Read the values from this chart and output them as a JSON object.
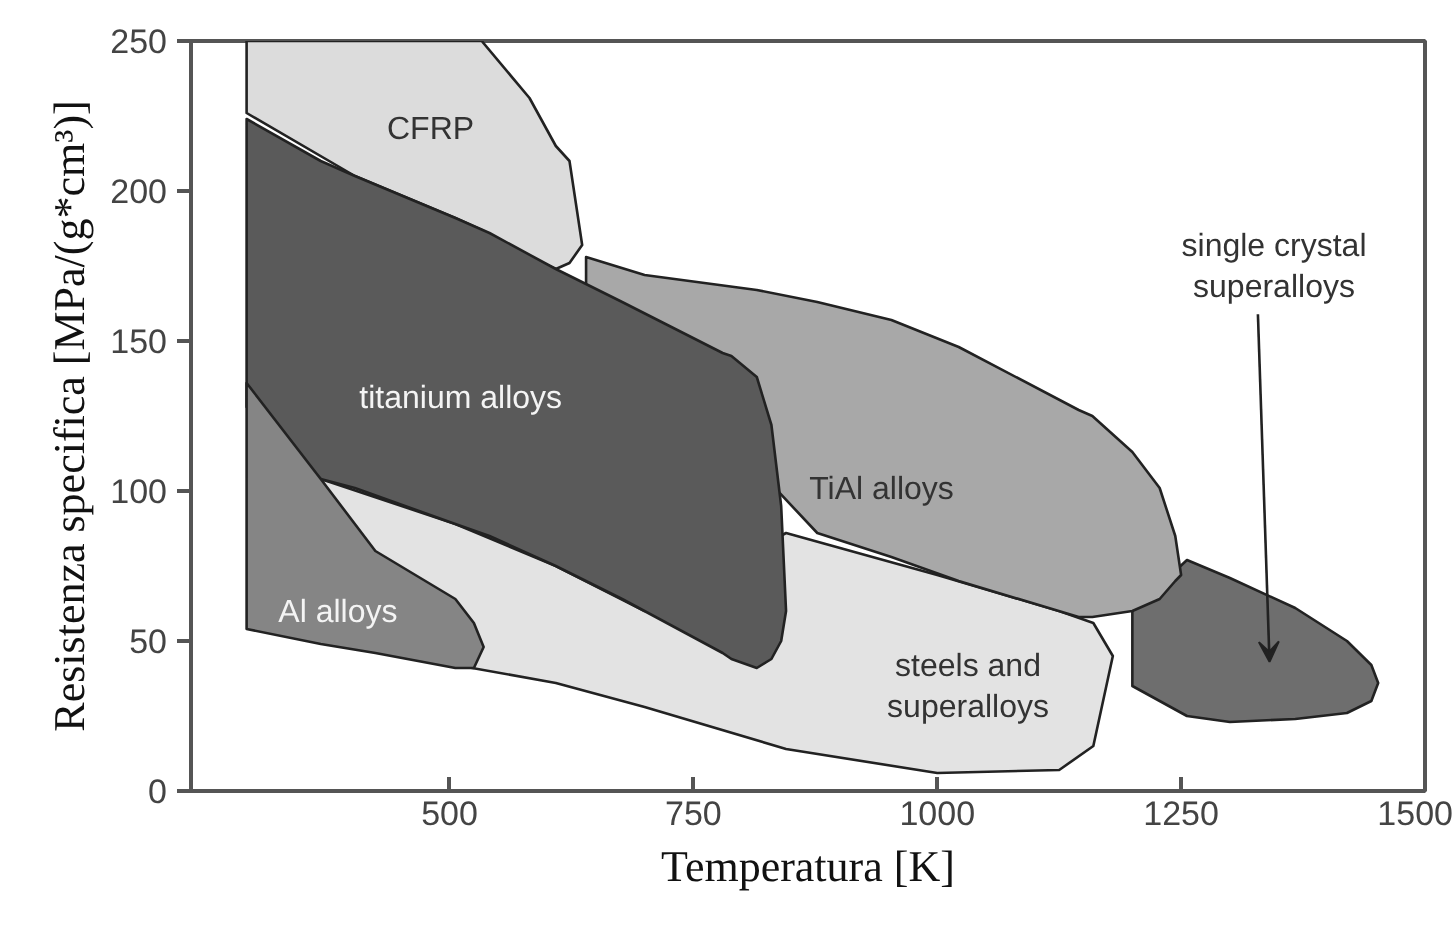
{
  "chart_data": {
    "type": "area",
    "xlabel": "Temperatura [K]",
    "ylabel": "Resistenza specifica [MPa/(g*cm³)]",
    "xlim": [
      235,
      1500
    ],
    "ylim": [
      0,
      250
    ],
    "xticks": [
      500,
      750,
      1000,
      1250,
      1500
    ],
    "yticks": [
      0,
      50,
      100,
      150,
      200,
      250
    ],
    "grid": false,
    "series": [
      {
        "name": "single crystal\nsuperalloys",
        "color": "#6e6e6e",
        "x": [
          1200,
          1256,
          1300,
          1367,
          1420,
          1445,
          1452,
          1445,
          1420,
          1367,
          1300,
          1256,
          1200
        ],
        "values": [
          60,
          77,
          71,
          61,
          50,
          42,
          36,
          30,
          26,
          24,
          23,
          25,
          35
        ]
      },
      {
        "name": "steels and\nsuperalloys",
        "color": "#e3e3e3",
        "x": [
          368,
          506,
          609,
          700,
          845,
          1000,
          1125,
          1160,
          1180,
          1160,
          1125,
          1000,
          845,
          700,
          609,
          506,
          368
        ],
        "values": [
          104,
          89,
          75,
          60,
          86,
          72,
          60,
          56,
          45,
          15,
          7,
          6,
          14,
          28,
          36,
          42,
          50
        ]
      },
      {
        "name": "TiAl alloys",
        "color": "#a8a8a8",
        "x": [
          640,
          700,
          815,
          877,
          953,
          1022,
          1145,
          1159,
          1200,
          1228,
          1244,
          1250,
          1244,
          1228,
          1200,
          1159,
          1145,
          1022,
          953,
          877,
          640
        ],
        "values": [
          178,
          172,
          167,
          163,
          157,
          148,
          127,
          125,
          113,
          101,
          85,
          72,
          70,
          64,
          60,
          58,
          58,
          70,
          78,
          86,
          168
        ]
      },
      {
        "name": "CFRP",
        "color": "#dcdcdc",
        "x": [
          292,
          403,
          506,
          533,
          582,
          609,
          623,
          636,
          623,
          609,
          582,
          533,
          506,
          403,
          292
        ],
        "values": [
          250,
          250,
          250,
          250,
          231,
          215,
          210,
          182,
          176,
          174,
          178,
          187,
          191,
          205,
          226
        ]
      },
      {
        "name": "titanium alloys",
        "color": "#5a5a5a",
        "x": [
          292,
          368,
          403,
          506,
          541,
          609,
          677,
          780,
          789,
          815,
          830,
          840,
          845,
          840,
          830,
          815,
          789,
          780,
          677,
          609,
          541,
          506,
          403,
          368,
          292
        ],
        "values": [
          224,
          210,
          205,
          191,
          186,
          174,
          163,
          146,
          145,
          138,
          122,
          95,
          60,
          50,
          44,
          41,
          44,
          46,
          64,
          75,
          85,
          89,
          101,
          104,
          128
        ]
      },
      {
        "name": "Al alloys",
        "color": "#858585",
        "x": [
          292,
          368,
          424,
          506,
          525,
          535,
          525,
          506,
          424,
          368,
          292
        ],
        "values": [
          136,
          104,
          80,
          64,
          56,
          48,
          41,
          41,
          46,
          49,
          54
        ]
      }
    ]
  }
}
